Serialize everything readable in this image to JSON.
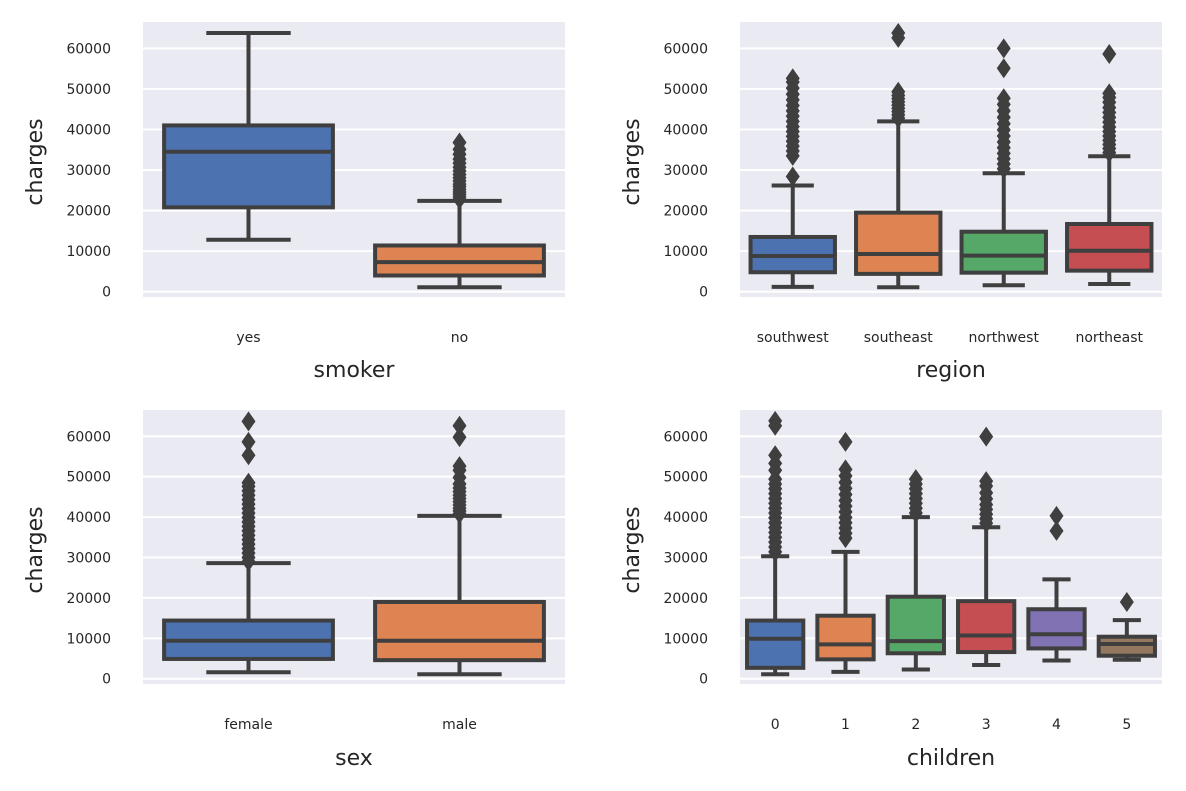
{
  "colors": {
    "background": "#eaeaf2",
    "grid": "#ffffff",
    "edge": "#3f3f3f",
    "palette": [
      "#4c72b0",
      "#dd8452",
      "#55a868",
      "#c44e52",
      "#8172b3",
      "#937860"
    ]
  },
  "chart_data": [
    {
      "type": "box",
      "xlabel": "smoker",
      "ylabel": "charges",
      "ylim": [
        -1300,
        66500
      ],
      "yticks": [
        0,
        10000,
        20000,
        30000,
        40000,
        50000,
        60000
      ],
      "grid": true,
      "categories": [
        "yes",
        "no"
      ],
      "boxes": [
        {
          "whisker_low": 12800,
          "q1": 20800,
          "median": 34500,
          "q3": 41000,
          "whisker_high": 63800,
          "outliers": []
        },
        {
          "whisker_low": 1100,
          "q1": 4000,
          "median": 7300,
          "q3": 11400,
          "whisker_high": 22400,
          "outliers": [
            22800,
            23400,
            24000,
            24600,
            25200,
            25900,
            26500,
            27300,
            28100,
            28900,
            29800,
            30700,
            31700,
            32700,
            33900,
            35100,
            36800
          ]
        }
      ]
    },
    {
      "type": "box",
      "xlabel": "region",
      "ylabel": "charges",
      "ylim": [
        -1300,
        66500
      ],
      "yticks": [
        0,
        10000,
        20000,
        30000,
        40000,
        50000,
        60000
      ],
      "grid": true,
      "categories": [
        "southwest",
        "southeast",
        "northwest",
        "northeast"
      ],
      "boxes": [
        {
          "whisker_low": 1200,
          "q1": 4800,
          "median": 8800,
          "q3": 13500,
          "whisker_high": 26200,
          "outliers": [
            28400,
            33500,
            34700,
            35900,
            37100,
            38300,
            39500,
            40700,
            42000,
            43300,
            44600,
            45900,
            47300,
            48700,
            50200,
            51700,
            52600
          ]
        },
        {
          "whisker_low": 1100,
          "q1": 4400,
          "median": 9300,
          "q3": 19500,
          "whisker_high": 42000,
          "outliers": [
            42800,
            43600,
            44400,
            45200,
            46000,
            46800,
            47600,
            48400,
            49300,
            62600,
            63800
          ]
        },
        {
          "whisker_low": 1600,
          "q1": 4700,
          "median": 8900,
          "q3": 14800,
          "whisker_high": 29200,
          "outliers": [
            30300,
            31500,
            32800,
            34100,
            35500,
            36900,
            38400,
            39900,
            41400,
            43000,
            44600,
            46200,
            47700,
            55100,
            60000
          ]
        },
        {
          "whisker_low": 1900,
          "q1": 5200,
          "median": 10100,
          "q3": 16700,
          "whisker_high": 33400,
          "outliers": [
            34300,
            35300,
            36300,
            37300,
            38400,
            39500,
            40600,
            41800,
            43000,
            44200,
            45400,
            46700,
            47900,
            48900,
            58600
          ]
        }
      ]
    },
    {
      "type": "box",
      "xlabel": "sex",
      "ylabel": "charges",
      "ylim": [
        -1300,
        66500
      ],
      "yticks": [
        0,
        10000,
        20000,
        30000,
        40000,
        50000,
        60000
      ],
      "grid": true,
      "categories": [
        "female",
        "male"
      ],
      "boxes": [
        {
          "whisker_low": 1600,
          "q1": 4900,
          "median": 9400,
          "q3": 14400,
          "whisker_high": 28600,
          "outliers": [
            29000,
            30000,
            31100,
            32200,
            33300,
            34400,
            35500,
            36600,
            37700,
            38800,
            39900,
            41000,
            42100,
            43200,
            44300,
            45400,
            46500,
            47600,
            48500,
            55300,
            58600,
            63700
          ]
        },
        {
          "whisker_low": 1100,
          "q1": 4600,
          "median": 9400,
          "q3": 19000,
          "whisker_high": 40300,
          "outliers": [
            40800,
            41500,
            42200,
            43000,
            43800,
            44600,
            45400,
            46300,
            47200,
            48200,
            49800,
            51600,
            52600,
            59800,
            62600
          ]
        }
      ]
    },
    {
      "type": "box",
      "xlabel": "children",
      "ylabel": "charges",
      "ylim": [
        -1300,
        66500
      ],
      "yticks": [
        0,
        10000,
        20000,
        30000,
        40000,
        50000,
        60000
      ],
      "grid": true,
      "categories": [
        "0",
        "1",
        "2",
        "3",
        "4",
        "5"
      ],
      "boxes": [
        {
          "whisker_low": 1100,
          "q1": 2700,
          "median": 9900,
          "q3": 14400,
          "whisker_high": 30300,
          "outliers": [
            31400,
            32600,
            33800,
            35000,
            36200,
            37400,
            38600,
            39800,
            41000,
            42200,
            43400,
            44600,
            45800,
            47000,
            48200,
            49400,
            51600,
            53300,
            55300,
            62600,
            63800
          ]
        },
        {
          "whisker_low": 1700,
          "q1": 4800,
          "median": 8500,
          "q3": 15600,
          "whisker_high": 31400,
          "outliers": [
            34800,
            36000,
            37300,
            38600,
            39900,
            41300,
            42700,
            44100,
            45600,
            47100,
            48600,
            50200,
            51800,
            58600
          ]
        },
        {
          "whisker_low": 2300,
          "q1": 6300,
          "median": 9300,
          "q3": 20300,
          "whisker_high": 40000,
          "outliers": [
            41000,
            42200,
            43400,
            44600,
            45800,
            47000,
            48200,
            49400
          ]
        },
        {
          "whisker_low": 3400,
          "q1": 6600,
          "median": 10700,
          "q3": 19200,
          "whisker_high": 37500,
          "outliers": [
            38500,
            39600,
            40700,
            41900,
            43100,
            44500,
            46000,
            47700,
            48900,
            59900
          ]
        },
        {
          "whisker_low": 4500,
          "q1": 7500,
          "median": 11000,
          "q3": 17200,
          "whisker_high": 24600,
          "outliers": [
            36600,
            40300
          ]
        },
        {
          "whisker_low": 4700,
          "q1": 5700,
          "median": 8600,
          "q3": 10400,
          "whisker_high": 14500,
          "outliers": [
            19000
          ]
        }
      ]
    }
  ]
}
